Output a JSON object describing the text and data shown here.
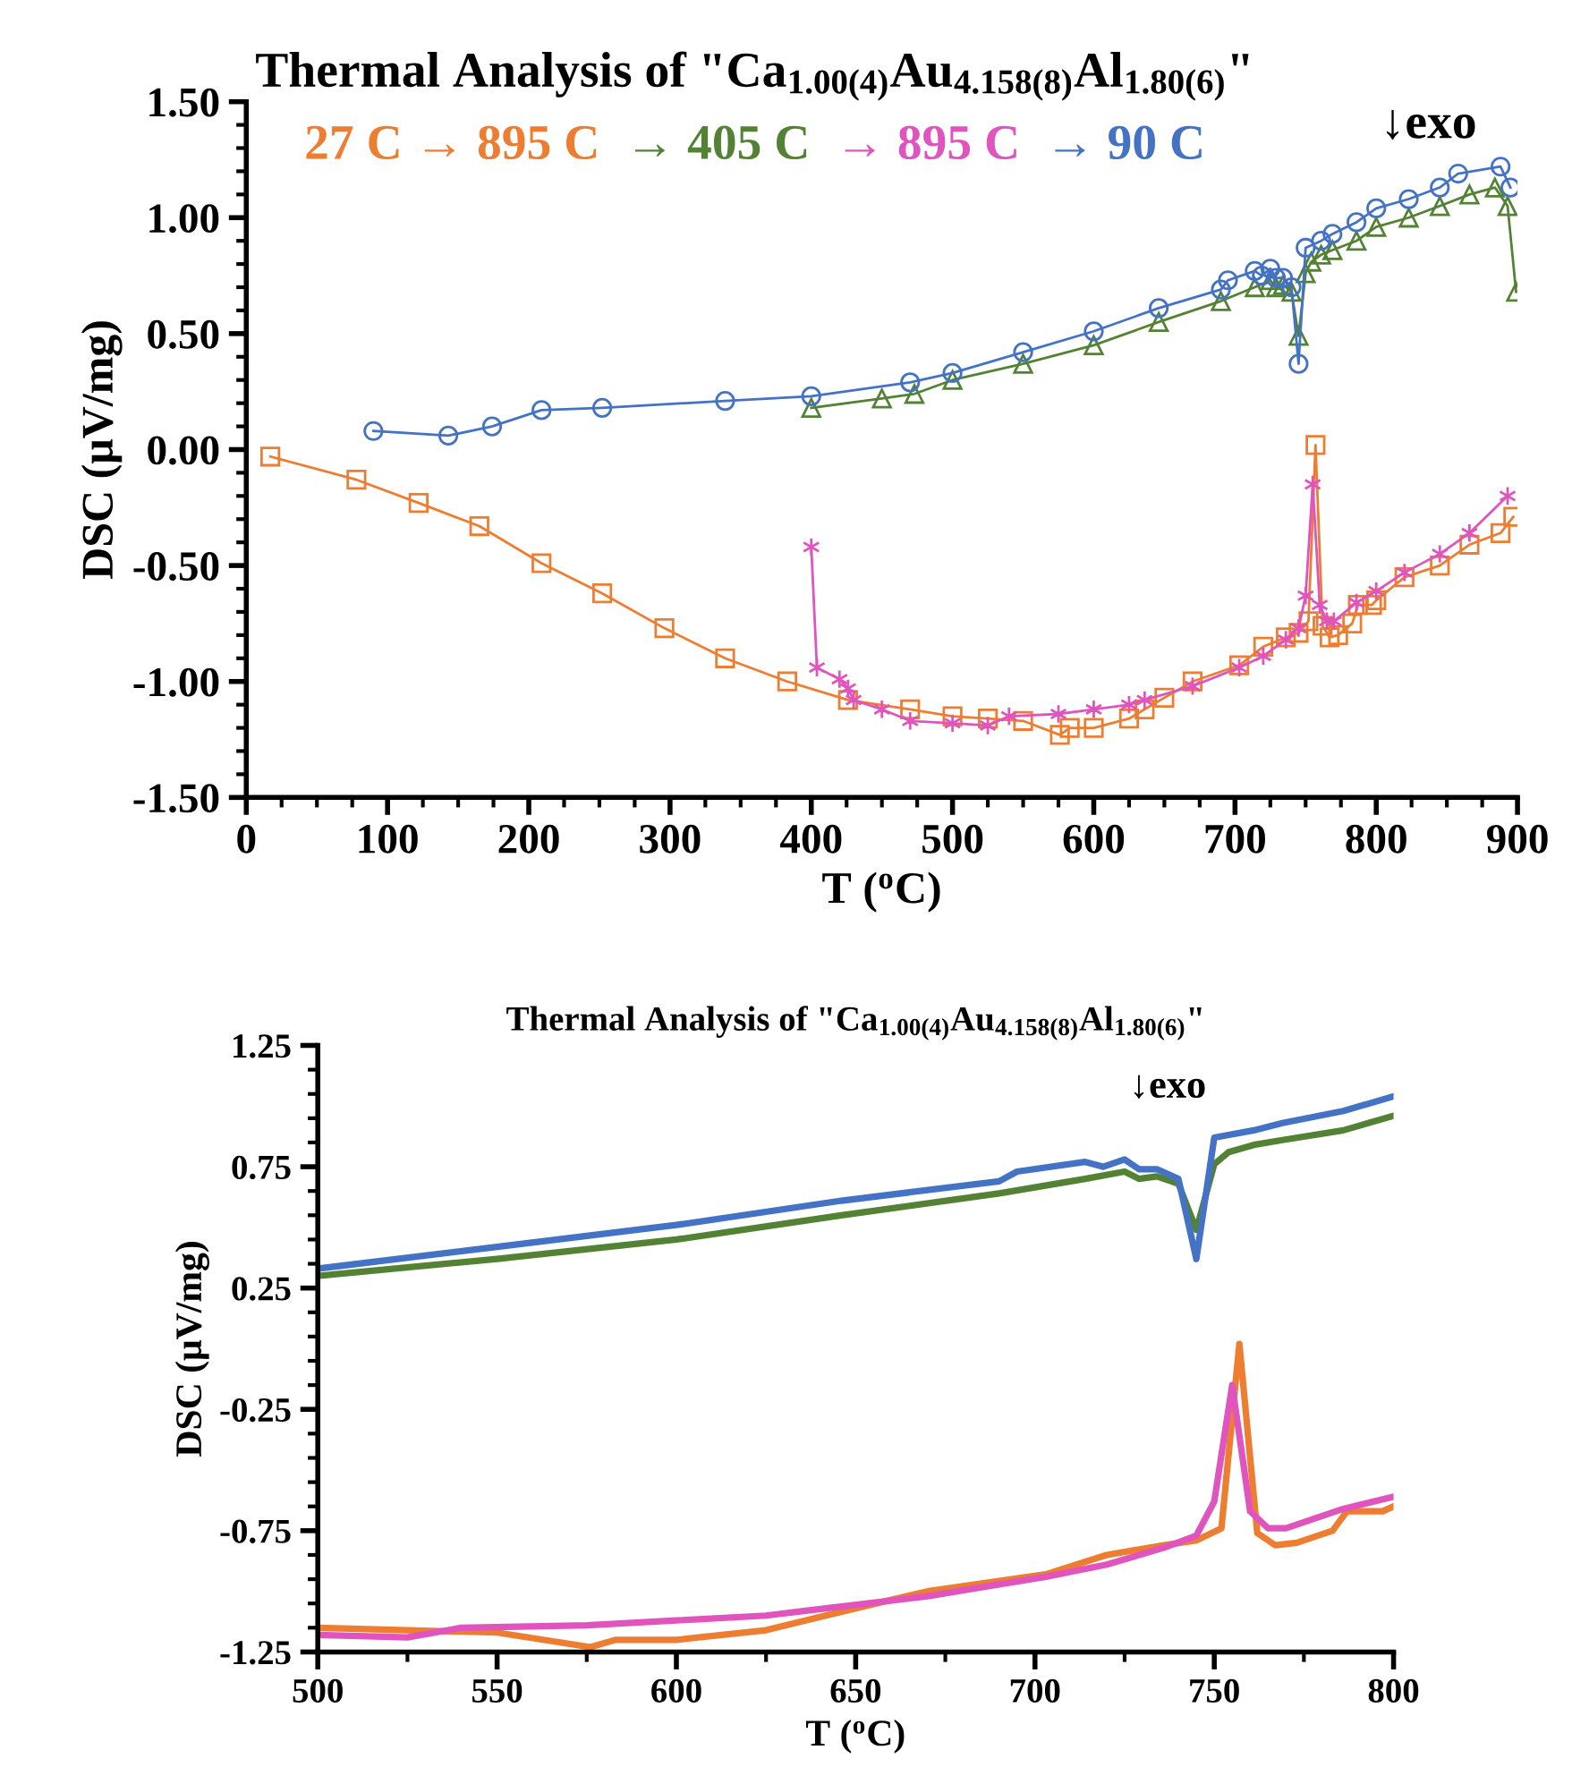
{
  "chart_data": [
    {
      "type": "line",
      "title": "Thermal Analysis of \"Ca$_{1.00(4)}$Au$_{4.158(8)}$Al$_{1.80(6)}$\"",
      "xlabel": "T ($^{o}$C)",
      "ylabel": "DSC (μV/mg)",
      "annotations": [
        "↓exo"
      ],
      "legend": "top",
      "line_style": "solid",
      "xlim": [
        0,
        900
      ],
      "ylim": [
        -1.5,
        1.5
      ],
      "xticks": [
        0,
        {
          "value": 25,
          "label": null
        },
        {
          "value": 50,
          "label": null
        },
        {
          "value": 75,
          "label": null
        },
        100,
        {
          "value": 125,
          "label": null
        },
        {
          "value": 150,
          "label": null
        },
        {
          "value": 175,
          "label": null
        },
        200,
        {
          "value": 225,
          "label": null
        },
        {
          "value": 250,
          "label": null
        },
        {
          "value": 275,
          "label": null
        },
        300,
        {
          "value": 325,
          "label": null
        },
        {
          "value": 350,
          "label": null
        },
        {
          "value": 375,
          "label": null
        },
        400,
        {
          "value": 425,
          "label": null
        },
        {
          "value": 450,
          "label": null
        },
        {
          "value": 475,
          "label": null
        },
        500,
        {
          "value": 525,
          "label": null
        },
        {
          "value": 550,
          "label": null
        },
        {
          "value": 575,
          "label": null
        },
        600,
        {
          "value": 625,
          "label": null
        },
        {
          "value": 650,
          "label": null
        },
        {
          "value": 675,
          "label": null
        },
        700,
        {
          "value": 725,
          "label": null
        },
        {
          "value": 750,
          "label": null
        },
        {
          "value": 775,
          "label": null
        },
        800,
        {
          "value": 825,
          "label": null
        },
        {
          "value": 850,
          "label": null
        },
        {
          "value": 875,
          "label": null
        },
        900
      ],
      "yticks": [
        {
          "value": -1.5,
          "label": "-1.50"
        },
        {
          "value": -1.4,
          "label": null
        },
        {
          "value": -1.3,
          "label": null
        },
        {
          "value": -1.2,
          "label": null
        },
        {
          "value": -1.1,
          "label": null
        },
        {
          "value": -1.0,
          "label": "-1.00"
        },
        {
          "value": -0.9,
          "label": null
        },
        {
          "value": -0.8,
          "label": null
        },
        {
          "value": -0.7,
          "label": null
        },
        {
          "value": -0.6,
          "label": null
        },
        {
          "value": -0.5,
          "label": "-0.50"
        },
        {
          "value": -0.4,
          "label": null
        },
        {
          "value": -0.3,
          "label": null
        },
        {
          "value": -0.2,
          "label": null
        },
        {
          "value": -0.1,
          "label": null
        },
        {
          "value": 0.0,
          "label": "0.00"
        },
        {
          "value": 0.1,
          "label": null
        },
        {
          "value": 0.2,
          "label": null
        },
        {
          "value": 0.3,
          "label": null
        },
        {
          "value": 0.4,
          "label": null
        },
        {
          "value": 0.5,
          "label": "0.50"
        },
        {
          "value": 0.6,
          "label": null
        },
        {
          "value": 0.7,
          "label": null
        },
        {
          "value": 0.8,
          "label": null
        },
        {
          "value": 0.9,
          "label": null
        },
        {
          "value": 1.0,
          "label": "1.00"
        },
        {
          "value": 1.1,
          "label": null
        },
        {
          "value": 1.2,
          "label": null
        },
        {
          "value": 1.3,
          "label": null
        },
        {
          "value": 1.4,
          "label": null
        },
        {
          "value": 1.5,
          "label": "1.50"
        }
      ],
      "series": [
        {
          "name": "27 C → 895 C",
          "color": "#ed7d31",
          "marker": "square",
          "x": [
            17,
            78,
            122,
            165,
            209,
            252,
            296,
            339,
            383,
            426,
            470,
            500,
            525,
            550,
            576,
            583,
            600,
            625,
            636,
            650,
            670,
            703,
            720,
            736,
            745,
            752,
            757,
            762,
            767,
            773,
            783,
            787,
            797,
            800,
            820,
            845,
            866,
            888,
            897
          ],
          "values": [
            -0.03,
            -0.13,
            -0.23,
            -0.33,
            -0.49,
            -0.62,
            -0.77,
            -0.9,
            -1.0,
            -1.08,
            -1.12,
            -1.15,
            -1.16,
            -1.17,
            -1.23,
            -1.2,
            -1.2,
            -1.16,
            -1.12,
            -1.07,
            -1.0,
            -0.93,
            -0.85,
            -0.81,
            -0.79,
            -0.74,
            0.02,
            -0.76,
            -0.81,
            -0.8,
            -0.75,
            -0.67,
            -0.67,
            -0.65,
            -0.55,
            -0.5,
            -0.41,
            -0.36,
            -0.29
          ]
        },
        {
          "name": "→ 405 C",
          "color": "#548235",
          "marker": "triangle",
          "x": [
            400,
            450,
            473,
            500,
            550,
            600,
            646,
            690,
            714,
            725,
            729,
            734,
            740,
            745,
            750,
            754,
            761,
            769,
            786,
            800,
            823,
            845,
            866,
            884,
            893,
            899
          ],
          "values": [
            0.18,
            0.22,
            0.24,
            0.3,
            0.37,
            0.45,
            0.55,
            0.64,
            0.7,
            0.73,
            0.7,
            0.71,
            0.68,
            0.49,
            0.76,
            0.81,
            0.84,
            0.86,
            0.9,
            0.96,
            1.0,
            1.05,
            1.1,
            1.13,
            1.05,
            0.68
          ]
        },
        {
          "name": "→ 895 C",
          "color": "#e055bd",
          "marker": "cross",
          "x": [
            400,
            404,
            420,
            426,
            430,
            450,
            470,
            500,
            525,
            540,
            575,
            600,
            625,
            636,
            670,
            703,
            720,
            736,
            745,
            750,
            755,
            760,
            765,
            770,
            786,
            800,
            820,
            845,
            866,
            893
          ],
          "values": [
            -0.42,
            -0.94,
            -0.99,
            -1.03,
            -1.08,
            -1.12,
            -1.17,
            -1.18,
            -1.19,
            -1.15,
            -1.14,
            -1.12,
            -1.1,
            -1.08,
            -1.02,
            -0.94,
            -0.89,
            -0.82,
            -0.77,
            -0.63,
            -0.15,
            -0.67,
            -0.74,
            -0.74,
            -0.66,
            -0.61,
            -0.53,
            -0.45,
            -0.36,
            -0.2
          ]
        },
        {
          "name": "→ 90 C",
          "color": "#4472c4",
          "marker": "circle",
          "x": [
            90,
            143,
            174,
            209,
            252,
            339,
            400,
            470,
            500,
            550,
            600,
            646,
            690,
            695,
            714,
            719,
            725,
            729,
            734,
            740,
            745,
            750,
            761,
            769,
            786,
            800,
            823,
            845,
            858,
            888,
            895
          ],
          "values": [
            0.08,
            0.06,
            0.1,
            0.17,
            0.18,
            0.21,
            0.23,
            0.29,
            0.33,
            0.42,
            0.51,
            0.61,
            0.69,
            0.73,
            0.77,
            0.75,
            0.78,
            0.74,
            0.74,
            0.7,
            0.37,
            0.87,
            0.9,
            0.93,
            0.98,
            1.04,
            1.08,
            1.13,
            1.19,
            1.22,
            1.13
          ]
        }
      ]
    },
    {
      "type": "line",
      "title": "Thermal Analysis of \"Ca$_{1.00(4)}$Au$_{4.158(8)}$Al$_{1.80(6)}$\"",
      "xlabel": "T ($^{o}$C)",
      "ylabel": "DSC (μV/mg)",
      "annotations": [
        "↓exo"
      ],
      "line_style": "solid",
      "marker": "none",
      "xlim": [
        500,
        800
      ],
      "ylim": [
        -1.25,
        1.25
      ],
      "xticks": [
        500,
        {
          "value": 525,
          "label": null
        },
        550,
        {
          "value": 575,
          "label": null
        },
        600,
        {
          "value": 625,
          "label": null
        },
        650,
        {
          "value": 675,
          "label": null
        },
        700,
        {
          "value": 725,
          "label": null
        },
        750,
        {
          "value": 775,
          "label": null
        },
        800
      ],
      "yticks": [
        {
          "value": -1.25,
          "label": "-1.25"
        },
        {
          "value": -1.15,
          "label": null
        },
        {
          "value": -1.05,
          "label": null
        },
        {
          "value": -0.95,
          "label": null
        },
        {
          "value": -0.85,
          "label": null
        },
        {
          "value": -0.75,
          "label": "-0.75"
        },
        {
          "value": -0.65,
          "label": null
        },
        {
          "value": -0.55,
          "label": null
        },
        {
          "value": -0.45,
          "label": null
        },
        {
          "value": -0.35,
          "label": null
        },
        {
          "value": -0.25,
          "label": "-0.25"
        },
        {
          "value": -0.15,
          "label": null
        },
        {
          "value": -0.05,
          "label": null
        },
        {
          "value": 0.05,
          "label": null
        },
        {
          "value": 0.15,
          "label": null
        },
        {
          "value": 0.25,
          "label": "0.25"
        },
        {
          "value": 0.35,
          "label": null
        },
        {
          "value": 0.45,
          "label": null
        },
        {
          "value": 0.55,
          "label": null
        },
        {
          "value": 0.65,
          "label": null
        },
        {
          "value": 0.75,
          "label": "0.75"
        },
        {
          "value": 0.85,
          "label": null
        },
        {
          "value": 0.95,
          "label": null
        },
        {
          "value": 1.05,
          "label": null
        },
        {
          "value": 1.15,
          "label": null
        },
        {
          "value": 1.25,
          "label": "1.25"
        }
      ],
      "series": [
        {
          "color": "#ed7d31",
          "x": [
            500,
            525,
            550,
            576,
            583,
            600,
            625,
            636,
            650,
            670,
            703,
            720,
            736,
            745,
            752,
            757,
            762,
            767,
            773,
            783,
            787,
            797,
            800
          ],
          "values": [
            -1.15,
            -1.16,
            -1.17,
            -1.23,
            -1.2,
            -1.2,
            -1.16,
            -1.12,
            -1.07,
            -1.0,
            -0.93,
            -0.85,
            -0.81,
            -0.79,
            -0.74,
            0.02,
            -0.76,
            -0.81,
            -0.8,
            -0.75,
            -0.67,
            -0.67,
            -0.65
          ]
        },
        {
          "color": "#548235",
          "x": [
            500,
            550,
            600,
            646,
            690,
            714,
            725,
            729,
            734,
            740,
            745,
            750,
            754,
            761,
            769,
            786,
            800
          ],
          "values": [
            0.3,
            0.37,
            0.45,
            0.55,
            0.64,
            0.7,
            0.73,
            0.7,
            0.71,
            0.68,
            0.49,
            0.76,
            0.81,
            0.84,
            0.86,
            0.9,
            0.96
          ]
        },
        {
          "color": "#e055bd",
          "x": [
            500,
            525,
            540,
            575,
            600,
            625,
            636,
            670,
            703,
            720,
            736,
            745,
            750,
            755,
            760,
            765,
            770,
            786,
            800
          ],
          "values": [
            -1.18,
            -1.19,
            -1.15,
            -1.14,
            -1.12,
            -1.1,
            -1.08,
            -1.02,
            -0.94,
            -0.89,
            -0.82,
            -0.77,
            -0.63,
            -0.15,
            -0.67,
            -0.74,
            -0.74,
            -0.66,
            -0.61
          ]
        },
        {
          "color": "#4472c4",
          "x": [
            500,
            550,
            600,
            646,
            690,
            695,
            714,
            719,
            725,
            729,
            734,
            740,
            745,
            750,
            761,
            769,
            786,
            800
          ],
          "values": [
            0.33,
            0.42,
            0.51,
            0.61,
            0.69,
            0.73,
            0.77,
            0.75,
            0.78,
            0.74,
            0.74,
            0.7,
            0.37,
            0.87,
            0.9,
            0.93,
            0.98,
            1.04
          ]
        }
      ]
    }
  ]
}
